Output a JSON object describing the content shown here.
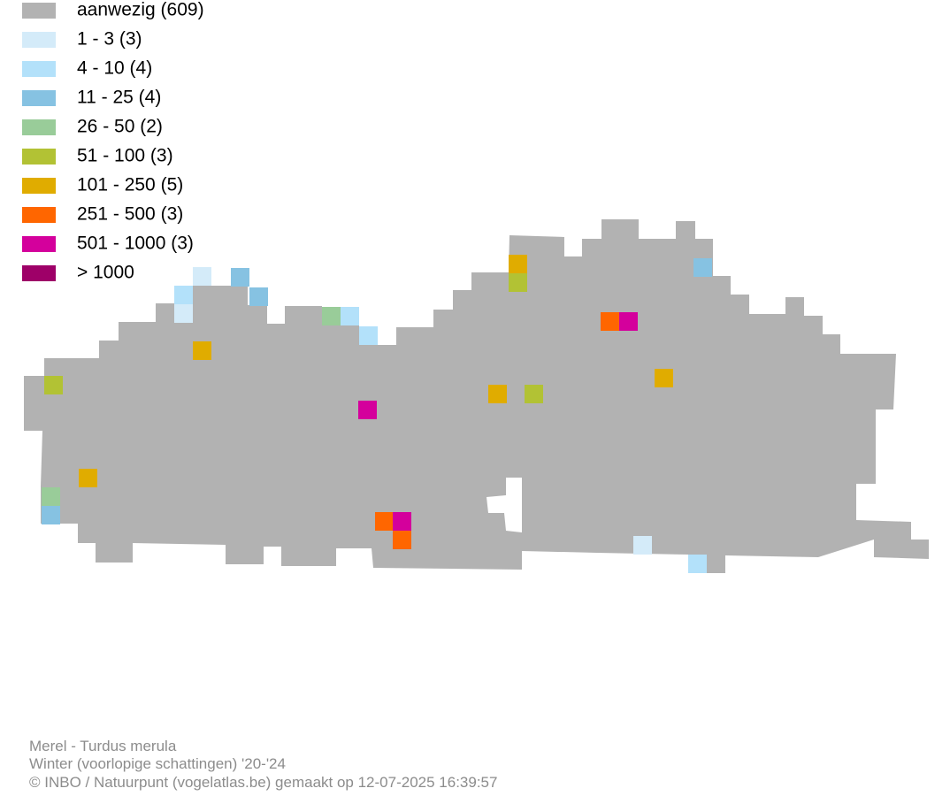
{
  "legend": [
    {
      "label": "aanwezig (609)",
      "color": "#b2b2b2"
    },
    {
      "label": "1 - 3 (3)",
      "color": "#d4ebf9"
    },
    {
      "label": "4 - 10 (4)",
      "color": "#b3e1fa"
    },
    {
      "label": "11 - 25 (4)",
      "color": "#86c2e2"
    },
    {
      "label": "26 - 50 (2)",
      "color": "#99cc99"
    },
    {
      "label": "51 - 100 (3)",
      "color": "#b2c234"
    },
    {
      "label": "101 - 250 (5)",
      "color": "#e0ac00"
    },
    {
      "label": "251 - 500 (3)",
      "color": "#ff6600"
    },
    {
      "label": "501 - 1000 (3)",
      "color": "#d4009c"
    },
    {
      "label": "> 1000",
      "color": "#9e0068"
    }
  ],
  "footer": {
    "species": "Merel - Turdus merula",
    "season": "Winter (voorlopige schattingen) '20-'24",
    "credit": "© INBO / Natuurpunt (vogelatlas.be) gemaakt op 12-07-2025 16:39:57"
  }
}
